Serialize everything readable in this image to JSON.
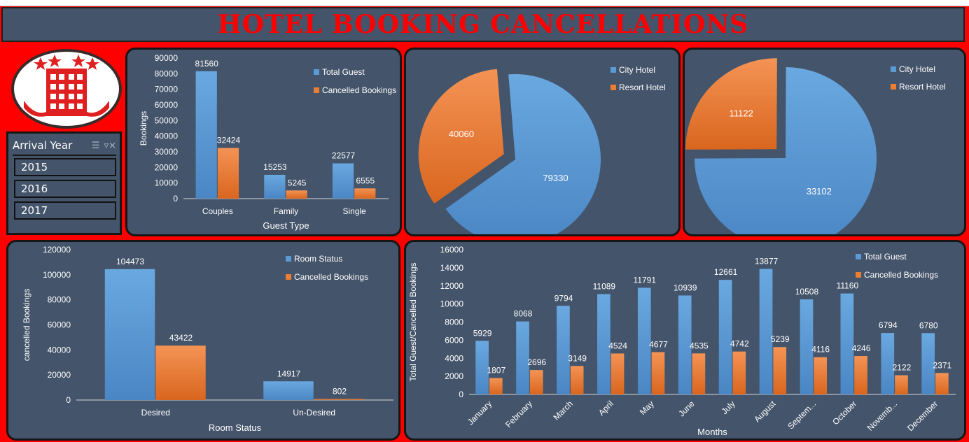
{
  "title": "HOTEL BOOKING CANCELLATIONS",
  "slicer": {
    "title": "Arrival Year",
    "items": [
      "2015",
      "2016",
      "2017"
    ],
    "multi_select_icon": "multi-select-icon",
    "clear_filter_icon": "clear-filter-icon"
  },
  "logo": {
    "icon": "hotel-building-icon"
  },
  "colors": {
    "blue": "#5b9bd5",
    "orange": "#ed7d31",
    "panel": "#44546a",
    "background": "#ff0000",
    "title": "#ff0000"
  },
  "chart_data": [
    {
      "id": "guest_type",
      "type": "bar",
      "title": "",
      "xlabel": "Guest Type",
      "ylabel": "Bookings",
      "ylim": [
        0,
        90000
      ],
      "yticks": [
        "0",
        "10000",
        "20000",
        "30000",
        "40000",
        "50000",
        "60000",
        "70000",
        "80000",
        "90000"
      ],
      "categories": [
        "Couples",
        "Family",
        "Single"
      ],
      "series": [
        {
          "name": "Total Guest",
          "values": [
            81560,
            15253,
            22577
          ]
        },
        {
          "name": "Cancelled Bookings",
          "values": [
            32424,
            5245,
            6555
          ]
        }
      ],
      "legend": "top-right"
    },
    {
      "id": "city_vs_resort_1",
      "type": "pie",
      "labels": [
        "City Hotel",
        "Resort Hotel"
      ],
      "values": [
        79330,
        40060
      ],
      "legend": "top-right"
    },
    {
      "id": "city_vs_resort_2",
      "type": "pie",
      "labels": [
        "City Hotel",
        "Resort Hotel"
      ],
      "values": [
        33102,
        11122
      ],
      "legend": "top-right"
    },
    {
      "id": "room_status",
      "type": "bar",
      "xlabel": "Room Status",
      "ylabel": "cancelled Bookings",
      "ylim": [
        0,
        120000
      ],
      "yticks": [
        "0",
        "20000",
        "40000",
        "60000",
        "80000",
        "100000",
        "120000"
      ],
      "categories": [
        "Desired",
        "Un-Desired"
      ],
      "series": [
        {
          "name": "Room Status",
          "values": [
            104473,
            14917
          ]
        },
        {
          "name": "Cancelled Bookings",
          "values": [
            43422,
            802
          ]
        }
      ],
      "legend": "top-right"
    },
    {
      "id": "months",
      "type": "bar",
      "xlabel": "Months",
      "ylabel": "Total Guest/Cancelled Bookings",
      "ylim": [
        0,
        16000
      ],
      "yticks": [
        "0",
        "2000",
        "4000",
        "6000",
        "8000",
        "10000",
        "12000",
        "14000",
        "16000"
      ],
      "categories": [
        "January",
        "February",
        "March",
        "April",
        "May",
        "June",
        "July",
        "August",
        "Septem...",
        "October",
        "Novemb...",
        "December"
      ],
      "series": [
        {
          "name": "Total Guest",
          "values": [
            5929,
            8068,
            9794,
            11089,
            11791,
            10939,
            12661,
            13877,
            10508,
            11160,
            6794,
            6780
          ]
        },
        {
          "name": "Cancelled Bookings",
          "values": [
            1807,
            2696,
            3149,
            4524,
            4677,
            4535,
            4742,
            5239,
            4116,
            4246,
            2122,
            2371
          ]
        }
      ],
      "legend": "top-right"
    }
  ]
}
